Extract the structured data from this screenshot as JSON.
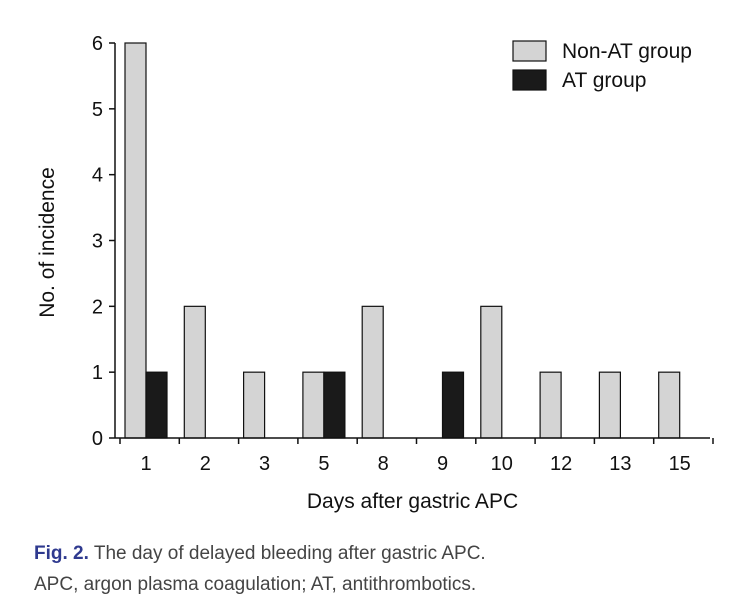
{
  "chart_data": {
    "type": "bar",
    "categories": [
      "1",
      "2",
      "3",
      "5",
      "8",
      "9",
      "10",
      "12",
      "13",
      "15"
    ],
    "series": [
      {
        "name": "Non-AT group",
        "values": [
          6,
          2,
          1,
          1,
          2,
          0,
          2,
          1,
          1,
          1
        ],
        "color": "#d4d4d4"
      },
      {
        "name": "AT group",
        "values": [
          1,
          0,
          0,
          1,
          0,
          1,
          0,
          0,
          0,
          0
        ],
        "color": "#1a1a1a"
      }
    ],
    "title": "",
    "xlabel": "Days after gastric APC",
    "ylabel": "No. of incidence",
    "ylim": [
      0,
      6
    ],
    "yticks": [
      0,
      1,
      2,
      3,
      4,
      5,
      6
    ],
    "grid": false,
    "legend_position": "top-right"
  },
  "caption": {
    "label": "Fig. 2.",
    "line1": " The day of delayed bleeding after gastric APC.",
    "line2": "APC, argon plasma coagulation; AT, antithrombotics."
  }
}
